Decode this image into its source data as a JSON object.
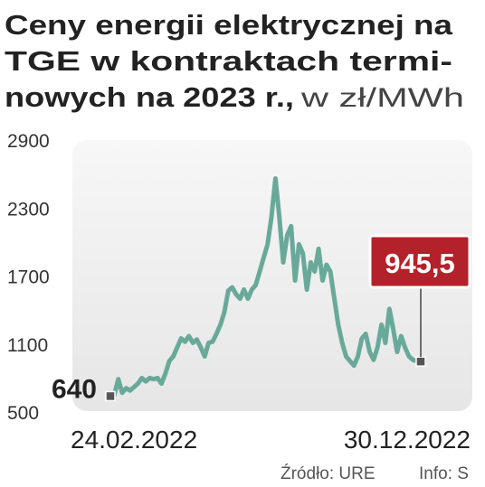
{
  "chart_data": {
    "type": "line",
    "title": [
      "Ceny energii elektrycznej na",
      "TGE w kontraktach termi-",
      "nowych na 2023 r.,"
    ],
    "subtitle": "w zł/MWh",
    "categories": [
      "24.02.2022",
      null,
      null,
      null,
      null,
      null,
      null,
      null,
      null,
      null,
      null,
      null,
      null,
      null,
      null,
      null,
      null,
      null,
      null,
      null,
      null,
      null,
      null,
      null,
      null,
      null,
      null,
      null,
      null,
      null,
      null,
      null,
      null,
      null,
      null,
      null,
      null,
      null,
      null,
      null,
      null,
      null,
      null,
      null,
      null,
      null,
      null,
      null,
      null,
      null,
      null,
      null,
      null,
      null,
      null,
      null,
      null,
      null,
      null,
      null,
      null,
      null,
      null,
      null,
      null,
      null,
      null,
      null,
      null,
      null,
      null,
      null,
      null,
      null,
      null,
      null,
      null,
      null,
      null,
      "30.12.2022"
    ],
    "series": [
      {
        "color": "#68a99a",
        "values": [
          640,
          650,
          790,
          670,
          710,
          690,
          720,
          750,
          800,
          770,
          800,
          790,
          800,
          750,
          840,
          950,
          990,
          1070,
          1150,
          1120,
          1170,
          1110,
          1140,
          1070,
          990,
          1110,
          1120,
          1190,
          1270,
          1380,
          1570,
          1600,
          1540,
          1500,
          1580,
          1500,
          1580,
          1620,
          1740,
          1860,
          1980,
          2220,
          2560,
          2220,
          1820,
          2060,
          2140,
          1660,
          1980,
          1900,
          1580,
          1820,
          1740,
          1940,
          1660,
          1800,
          1740,
          1500,
          1270,
          1110,
          990,
          950,
          910,
          990,
          1150,
          1190,
          1030,
          960,
          1070,
          1270,
          1110,
          1410,
          1230,
          1030,
          1170,
          1070,
          990,
          960,
          950,
          945.5
        ],
        "value_labels": [
          null,
          null,
          null,
          null,
          null,
          null,
          null,
          null,
          null,
          null,
          null,
          null,
          null,
          null,
          null,
          null,
          null,
          null,
          null,
          null,
          null,
          null,
          null,
          null,
          null,
          null,
          null,
          null,
          null,
          null,
          null,
          null,
          null,
          null,
          null,
          null,
          null,
          null,
          null,
          null,
          null,
          null,
          null,
          null,
          null,
          null,
          null,
          null,
          null,
          null,
          null,
          null,
          null,
          null,
          null,
          null,
          null,
          null,
          null,
          null,
          null,
          null,
          null,
          null,
          null,
          null,
          null,
          null,
          null,
          null,
          null,
          null,
          null,
          null,
          null,
          null,
          null,
          null,
          null,
          "945,5"
        ]
      }
    ],
    "ylim": [
      500,
      2900
    ],
    "yticks": [
      500,
      1100,
      1700,
      2300,
      2900
    ],
    "grid": false,
    "source": "Źródło: URE",
    "info": "Info: S"
  }
}
